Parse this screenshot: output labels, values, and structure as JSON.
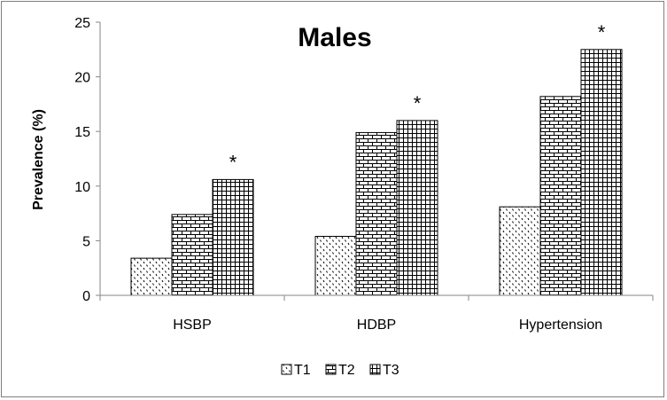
{
  "chart_data": {
    "type": "bar",
    "title": "Males",
    "xlabel": "",
    "ylabel": "Prevalence (%)",
    "ylim": [
      0,
      25
    ],
    "yticks": [
      0,
      5,
      10,
      15,
      20,
      25
    ],
    "categories": [
      "HSBP",
      "HDBP",
      "Hypertension"
    ],
    "series": [
      {
        "name": "T1",
        "values": [
          3.4,
          5.4,
          8.1
        ],
        "pattern": "dots"
      },
      {
        "name": "T2",
        "values": [
          7.4,
          14.9,
          18.2
        ],
        "pattern": "bricks"
      },
      {
        "name": "T3",
        "values": [
          10.6,
          16.0,
          22.5
        ],
        "pattern": "grid"
      }
    ],
    "annotations": [
      {
        "category": "HSBP",
        "series": "T3",
        "text": "*"
      },
      {
        "category": "HDBP",
        "series": "T3",
        "text": "*"
      },
      {
        "category": "Hypertension",
        "series": "T3",
        "text": "*"
      }
    ],
    "grid": false,
    "legend": "bottom"
  }
}
